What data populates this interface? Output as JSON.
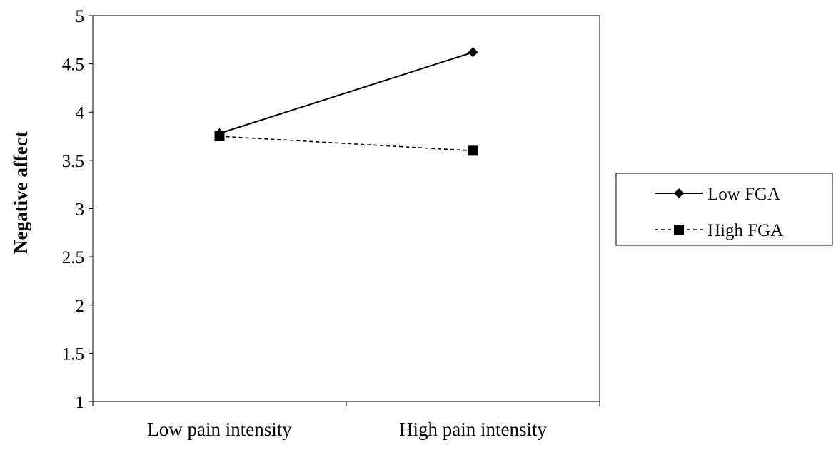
{
  "chart_data": {
    "type": "line",
    "title": "",
    "xlabel": "",
    "ylabel": "Negative affect",
    "ylim": [
      1,
      5
    ],
    "yticks": [
      1,
      1.5,
      2,
      2.5,
      3,
      3.5,
      4,
      4.5,
      5
    ],
    "ytick_labels": [
      "1",
      "1.5",
      "2",
      "2.5",
      "3",
      "3.5",
      "4",
      "4.5",
      "5"
    ],
    "categories": [
      "Low pain intensity",
      "High pain intensity"
    ],
    "grid": false,
    "legend_position": "right",
    "series": [
      {
        "name": "Low FGA",
        "values": [
          3.78,
          4.62
        ],
        "line": "solid",
        "marker": "diamond",
        "color": "#000000"
      },
      {
        "name": "High FGA",
        "values": [
          3.75,
          3.6
        ],
        "line": "dashed",
        "marker": "square",
        "color": "#000000"
      }
    ]
  }
}
